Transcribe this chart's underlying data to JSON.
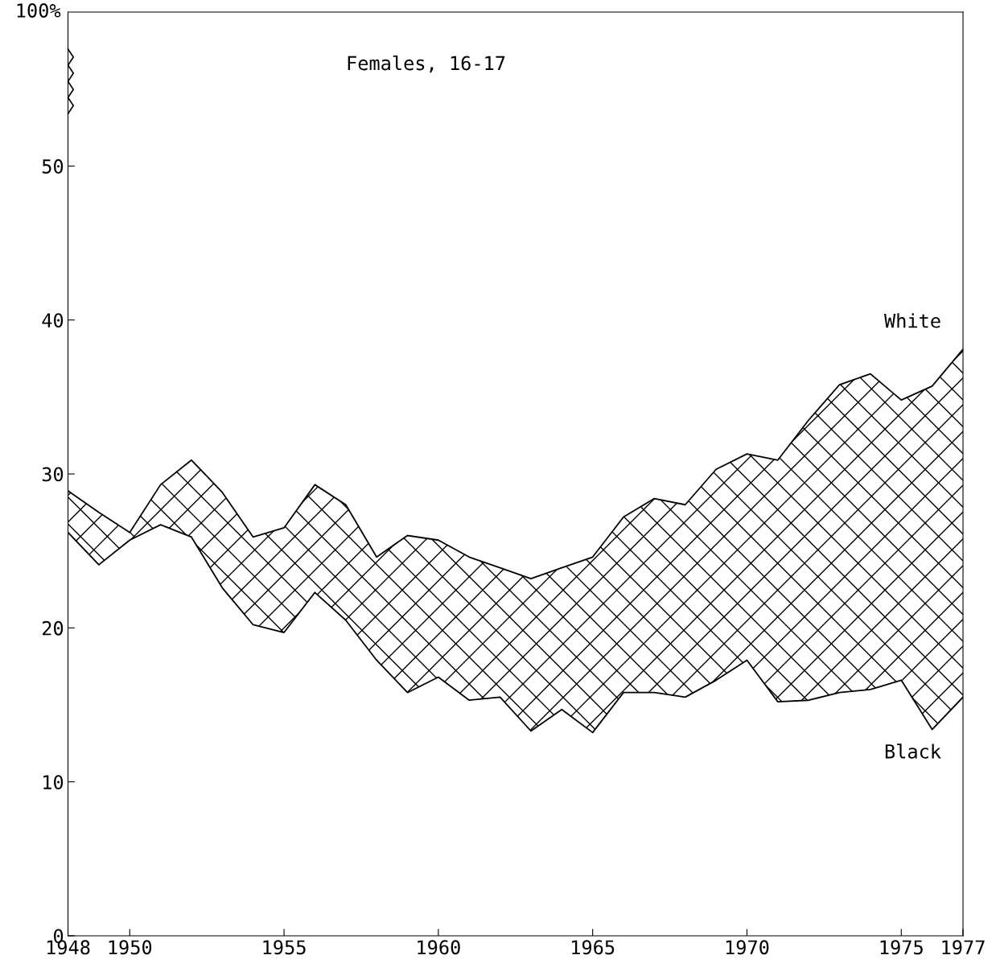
{
  "chart_data": {
    "type": "line",
    "title": "Females, 16-17",
    "x": [
      1948,
      1949,
      1950,
      1951,
      1952,
      1953,
      1954,
      1955,
      1956,
      1957,
      1958,
      1959,
      1960,
      1961,
      1962,
      1963,
      1964,
      1965,
      1966,
      1967,
      1968,
      1969,
      1970,
      1971,
      1972,
      1973,
      1974,
      1975,
      1976,
      1977
    ],
    "series": [
      {
        "name": "White",
        "color": "#000000",
        "values": [
          28.9,
          27.5,
          26.2,
          29.3,
          30.9,
          28.8,
          25.9,
          26.5,
          29.3,
          28.0,
          24.6,
          26.0,
          25.7,
          24.6,
          23.9,
          23.2,
          23.9,
          24.6,
          27.2,
          28.4,
          28.0,
          30.3,
          31.3,
          30.9,
          33.5,
          35.8,
          36.5,
          34.8,
          35.7,
          38.1
        ],
        "lower": [
          26.2,
          24.1,
          25.7,
          26.7,
          25.9,
          22.6,
          20.2,
          19.7,
          22.3,
          20.5,
          17.9,
          15.8,
          16.8,
          15.3,
          15.5,
          13.3,
          14.7,
          13.2,
          15.8,
          15.8,
          15.5,
          16.6,
          17.9,
          15.2,
          15.3,
          15.8,
          16.0,
          16.6,
          13.4,
          15.5
        ],
        "upper": [
          28.9,
          27.5,
          26.2,
          29.3,
          30.9,
          28.8,
          25.9,
          26.5,
          29.3,
          28.0,
          24.6,
          26.0,
          25.7,
          24.6,
          23.9,
          23.2,
          23.9,
          24.6,
          27.2,
          28.4,
          28.0,
          30.3,
          31.3,
          30.9,
          33.5,
          35.8,
          36.5,
          34.8,
          35.7,
          38.1
        ]
      },
      {
        "name": "Black",
        "color": "#000000",
        "values": [
          26.2,
          24.1,
          25.7,
          26.7,
          25.9,
          22.6,
          20.2,
          19.7,
          22.3,
          20.5,
          17.9,
          15.8,
          16.8,
          15.3,
          15.5,
          13.3,
          14.7,
          13.2,
          15.8,
          15.8,
          15.5,
          16.6,
          17.9,
          15.2,
          15.3,
          15.8,
          16.0,
          16.6,
          13.4,
          15.5
        ]
      }
    ],
    "annotations": [
      "100%"
    ],
    "xlim": [
      1948,
      1977
    ],
    "xticks": [
      1948,
      1950,
      1955,
      1960,
      1965,
      1970,
      1975,
      1977
    ],
    "ylim": [
      0,
      60
    ],
    "yticks": [
      0,
      10,
      20,
      30,
      40,
      50
    ],
    "grid": false,
    "marker": "none",
    "line_style": "solid"
  }
}
